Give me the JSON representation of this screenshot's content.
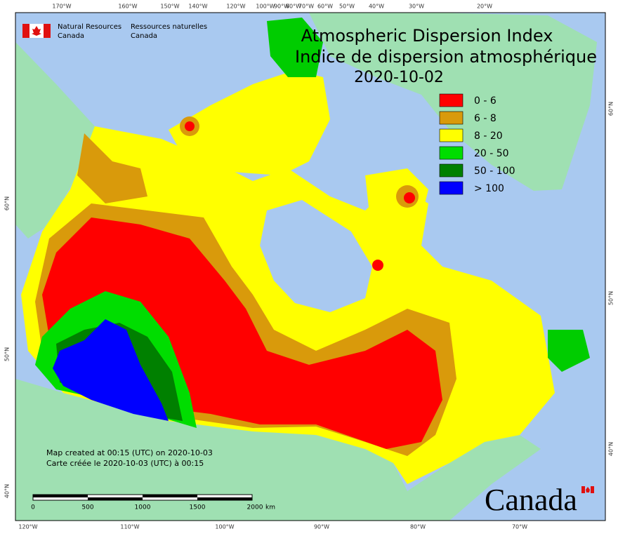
{
  "agency": {
    "en_line1": "Natural Resources",
    "en_line2": "Canada",
    "fr_line1": "Ressources naturelles",
    "fr_line2": "Canada"
  },
  "title": {
    "line1": "Atmospheric Dispersion Index",
    "line2": "Indice de dispersion atmosphérique",
    "date": "2020-10-02"
  },
  "legend": [
    {
      "label": "0 - 6",
      "color": "#ff0000"
    },
    {
      "label": "6 - 8",
      "color": "#d99a0b"
    },
    {
      "label": "8 - 20",
      "color": "#ffff00"
    },
    {
      "label": "20 - 50",
      "color": "#00dd00"
    },
    {
      "label": "50 - 100",
      "color": "#008000"
    },
    {
      "label": "> 100",
      "color": "#0000ff"
    }
  ],
  "notes": [
    "Map created at 00:15 (UTC) on 2020-10-03",
    "Carte créée le 2020-10-03 (UTC) à 00:15"
  ],
  "scale_bar": {
    "labels": [
      "0",
      "500",
      "1000",
      "1500",
      "2000"
    ],
    "unit": "km"
  },
  "graticule": {
    "top": [
      "170°W",
      "160°W",
      "150°W",
      "140°W",
      "120°W",
      "100°W",
      "90°W",
      "80°W",
      "70°W",
      "60°W",
      "50°W",
      "40°W",
      "30°W",
      "20°W"
    ],
    "bottom": [
      "120°W",
      "110°W",
      "100°W",
      "90°W",
      "80°W",
      "70°W"
    ],
    "left": [
      "60°N",
      "50°N",
      "40°N"
    ],
    "right": [
      "60°N",
      "50°N",
      "40°N"
    ]
  },
  "wordmark": "Canada"
}
